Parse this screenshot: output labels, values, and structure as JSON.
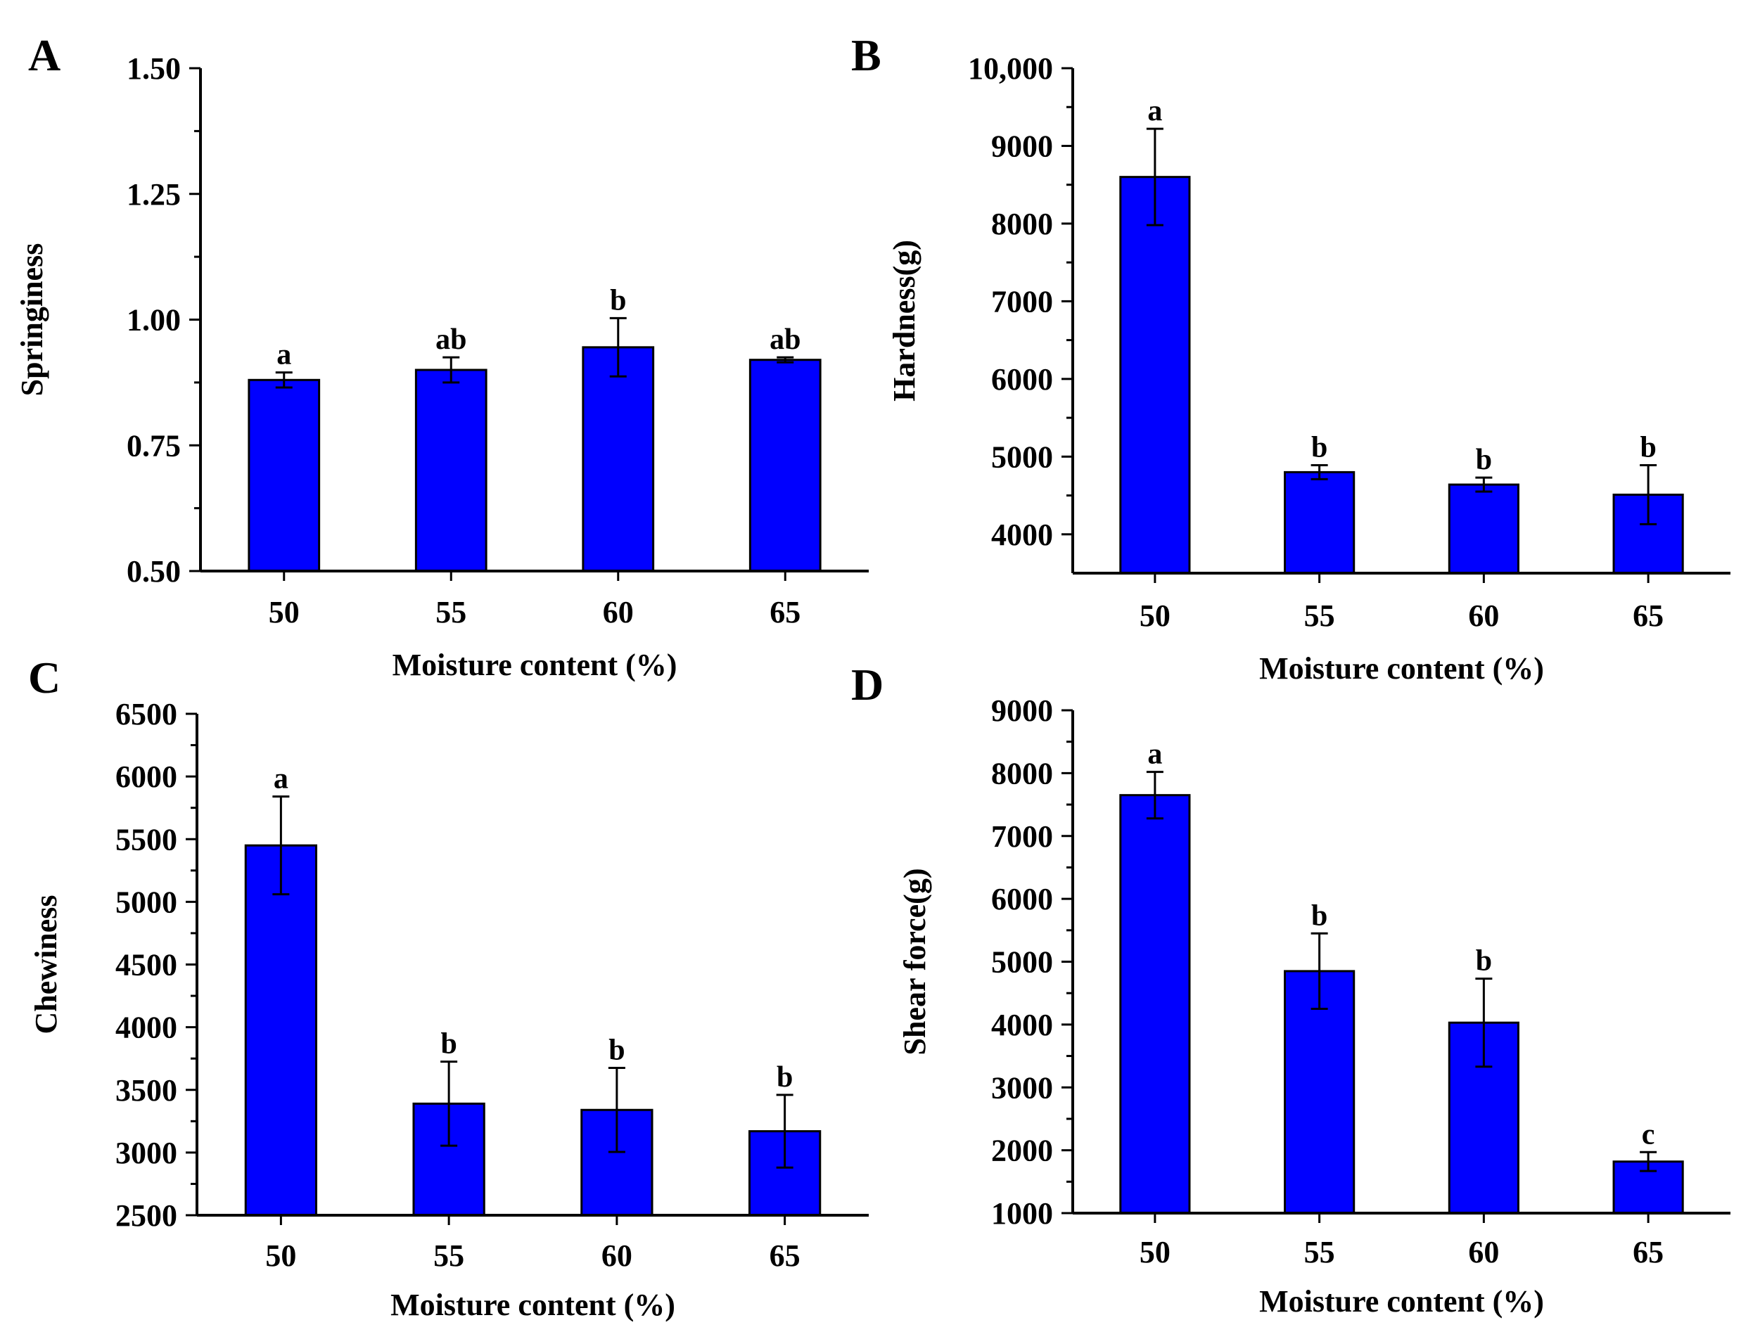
{
  "colors": {
    "bar_fill": "#0000ff",
    "bar_stroke": "#000000",
    "axis": "#000000"
  },
  "chart_data": [
    {
      "panel": "A",
      "type": "bar",
      "categories": [
        "50",
        "55",
        "60",
        "65"
      ],
      "values": [
        0.88,
        0.9,
        0.945,
        0.92
      ],
      "errors": [
        0.015,
        0.025,
        0.058,
        0.005
      ],
      "sig_labels": [
        "a",
        "ab",
        "b",
        "ab"
      ],
      "xlabel": "Moisture content (%)",
      "ylabel": "Springiness",
      "ylim": [
        0.5,
        1.5
      ],
      "yticks": [
        0.5,
        0.75,
        1.0,
        1.25,
        1.5
      ],
      "ytick_labels": [
        "0.50",
        "0.75",
        "1.00",
        "1.25",
        "1.50"
      ],
      "grid": false
    },
    {
      "panel": "B",
      "type": "bar",
      "categories": [
        "50",
        "55",
        "60",
        "65"
      ],
      "values": [
        8600,
        4800,
        4640,
        4510
      ],
      "errors": [
        620,
        90,
        90,
        380
      ],
      "sig_labels": [
        "a",
        "b",
        "b",
        "b"
      ],
      "xlabel": "Moisture content (%)",
      "ylabel": "Hardness(g)",
      "ylim": [
        3500,
        10000
      ],
      "yticks": [
        4000,
        5000,
        6000,
        7000,
        8000,
        9000,
        10000
      ],
      "ytick_labels": [
        "4000",
        "5000",
        "6000",
        "7000",
        "8000",
        "9000",
        "10,000"
      ],
      "grid": false
    },
    {
      "panel": "C",
      "type": "bar",
      "categories": [
        "50",
        "55",
        "60",
        "65"
      ],
      "values": [
        5450,
        3390,
        3340,
        3170
      ],
      "errors": [
        390,
        335,
        335,
        290
      ],
      "sig_labels": [
        "a",
        "b",
        "b",
        "b"
      ],
      "xlabel": "Moisture content (%)",
      "ylabel": "Chewiness",
      "ylim": [
        2500,
        6500
      ],
      "yticks": [
        2500,
        3000,
        3500,
        4000,
        4500,
        5000,
        5500,
        6000,
        6500
      ],
      "ytick_labels": [
        "2500",
        "3000",
        "3500",
        "4000",
        "4500",
        "5000",
        "5500",
        "6000",
        "6500"
      ],
      "grid": false
    },
    {
      "panel": "D",
      "type": "bar",
      "categories": [
        "50",
        "55",
        "60",
        "65"
      ],
      "values": [
        7650,
        4850,
        4030,
        1820
      ],
      "errors": [
        370,
        600,
        700,
        150
      ],
      "sig_labels": [
        "a",
        "b",
        "b",
        "c"
      ],
      "xlabel": "Moisture content (%)",
      "ylabel": "Shear force(g)",
      "ylim": [
        1000,
        9000
      ],
      "yticks": [
        1000,
        2000,
        3000,
        4000,
        5000,
        6000,
        7000,
        8000,
        9000
      ],
      "ytick_labels": [
        "1000",
        "2000",
        "3000",
        "4000",
        "5000",
        "6000",
        "7000",
        "8000",
        "9000"
      ],
      "grid": false
    }
  ]
}
